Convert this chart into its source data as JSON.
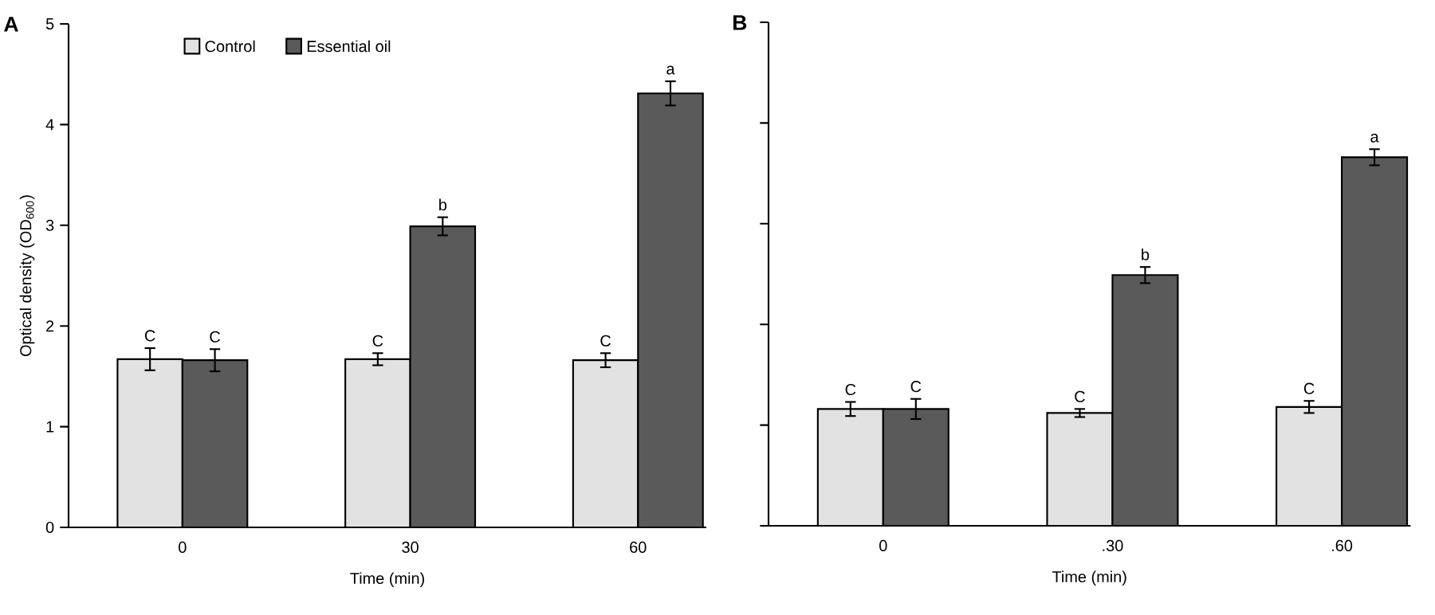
{
  "chart_data": [
    {
      "type": "bar",
      "title": "A",
      "xlabel": "Time (min)",
      "ylabel": "Optical density (OD$_{600}$)",
      "categories": [
        "0",
        "30",
        "60"
      ],
      "series": [
        {
          "name": "Control",
          "color": "#e2e2e2",
          "values": [
            1.67,
            1.67,
            1.66
          ],
          "errors": [
            0.11,
            0.06,
            0.07
          ]
        },
        {
          "name": "Essential oil",
          "color": "#5a5a5a",
          "values": [
            1.66,
            2.99,
            4.31
          ],
          "errors": [
            0.11,
            0.09,
            0.12
          ]
        }
      ],
      "ylim": [
        0,
        5
      ],
      "yticks": [
        0,
        1,
        2,
        3,
        4,
        5
      ],
      "legend": "top left",
      "annotations": [
        {
          "text": "C",
          "x": "0",
          "y": 1.67
        },
        {
          "text": "C",
          "x": "0",
          "y": 1.66
        },
        {
          "text": "C",
          "x": "30",
          "y": 1.67
        },
        {
          "text": "b",
          "x": "30",
          "y": 2.99
        },
        {
          "text": "C",
          "x": "60",
          "y": 1.66
        },
        {
          "text": "a",
          "x": "60",
          "y": 4.31
        }
      ]
    },
    {
      "type": "bar",
      "title": "B",
      "xlabel": "Time (min)",
      "categories": [
        "0",
        ".30",
        ".60"
      ],
      "series": [
        {
          "color": "#e2e2e2",
          "values": [
            1.16,
            1.12,
            1.18
          ],
          "errors": [
            0.07,
            0.04,
            0.06
          ]
        },
        {
          "color": "#5a5a5a",
          "values": [
            1.16,
            2.49,
            3.66
          ],
          "errors": [
            0.1,
            0.08,
            0.08
          ]
        }
      ],
      "ylim": [
        0,
        5
      ],
      "yticks": [
        0,
        1,
        2,
        3,
        4,
        5
      ],
      "tick_labels": "x",
      "annotations": [
        {
          "text": "C",
          "x": "0",
          "y": 1.16
        },
        {
          "text": "C",
          "x": "0",
          "y": 1.16
        },
        {
          "text": "C",
          "x": ".30",
          "y": 1.12
        },
        {
          "text": "b",
          "x": ".30",
          "y": 2.49
        },
        {
          "text": "C",
          "x": ".60",
          "y": 1.18
        },
        {
          "text": "a",
          "x": ".60",
          "y": 3.66
        }
      ]
    }
  ]
}
